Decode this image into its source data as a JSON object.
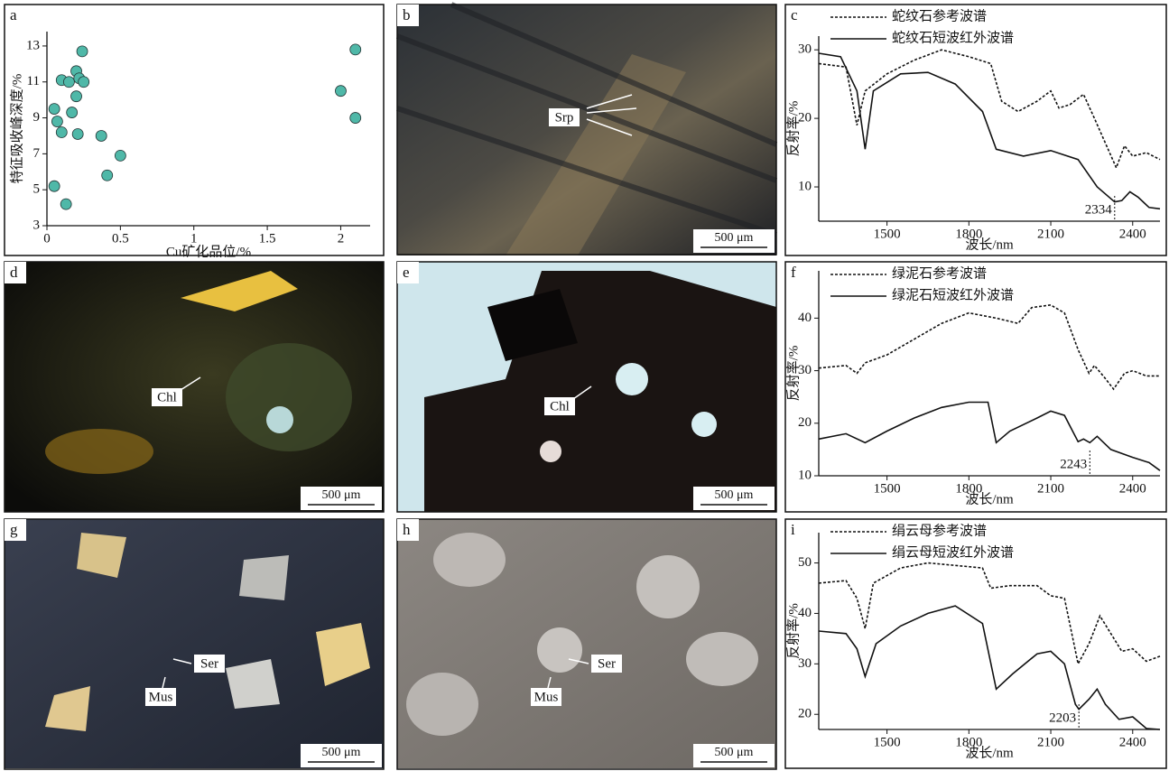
{
  "chart_data": [
    {
      "type": "scatter",
      "label": "a",
      "x_label": "Cu矿化品位/%",
      "y_label": "特征吸收峰深度/%",
      "color": "#4fb8a8",
      "x": [
        0.05,
        0.05,
        0.07,
        0.1,
        0.1,
        0.13,
        0.15,
        0.17,
        0.2,
        0.2,
        0.21,
        0.22,
        0.24,
        0.25,
        0.37,
        0.41,
        0.5,
        2.0,
        2.1,
        2.1
      ],
      "values": [
        9.5,
        5.2,
        8.8,
        11.1,
        8.2,
        4.2,
        11,
        9.3,
        10.2,
        11.6,
        8.1,
        11.2,
        12.7,
        11,
        8,
        5.8,
        6.9,
        10.5,
        12.8,
        9
      ],
      "xlim": [
        0,
        2.2
      ],
      "xticks": [
        0,
        0.5,
        1,
        1.5,
        2
      ],
      "ylim": [
        3,
        13.8
      ],
      "yticks": [
        3,
        5,
        7,
        9,
        11,
        13
      ]
    },
    {
      "type": "line",
      "label": "c",
      "x_label": "波长/nm",
      "y_label": "反射率/%",
      "series": [
        {
          "name": "蛇纹石参考波谱",
          "color": "#111",
          "style": "dashed",
          "x": [
            1250,
            1350,
            1390,
            1420,
            1500,
            1600,
            1700,
            1800,
            1880,
            1920,
            1980,
            2050,
            2100,
            2130,
            2170,
            2220,
            2260,
            2340,
            2370,
            2400,
            2450,
            2500
          ],
          "values": [
            28,
            27.5,
            19,
            24,
            26.5,
            28.5,
            30,
            29,
            28,
            22.5,
            21,
            22.5,
            24,
            21.5,
            22,
            23.5,
            20,
            12.8,
            16,
            14.5,
            15,
            14
          ]
        },
        {
          "name": "蛇纹石短波红外波谱",
          "color": "#111",
          "style": "solid",
          "x": [
            1250,
            1330,
            1390,
            1420,
            1450,
            1550,
            1650,
            1750,
            1850,
            1900,
            2000,
            2100,
            2200,
            2270,
            2334,
            2360,
            2390,
            2420,
            2460,
            2500
          ],
          "values": [
            29.5,
            29,
            24,
            15.5,
            24,
            26.5,
            26.7,
            25,
            21,
            15.5,
            14.5,
            15.3,
            14,
            10,
            7.8,
            8,
            9.3,
            8.5,
            7,
            6.8
          ]
        }
      ],
      "annotations": [
        {
          "text": "2334",
          "x": 2334
        }
      ],
      "xlim": [
        1250,
        2500
      ],
      "xticks": [
        1500,
        1800,
        2100,
        2400
      ],
      "ylim": [
        5,
        32
      ],
      "yticks": [
        10,
        20,
        30
      ]
    },
    {
      "type": "line",
      "label": "f",
      "x_label": "波长/nm",
      "y_label": "反射率/%",
      "series": [
        {
          "name": "绿泥石参考波谱",
          "color": "#111",
          "style": "dashed",
          "x": [
            1250,
            1350,
            1390,
            1420,
            1500,
            1600,
            1700,
            1800,
            1900,
            1980,
            2030,
            2100,
            2150,
            2200,
            2240,
            2260,
            2300,
            2330,
            2370,
            2400,
            2450,
            2500
          ],
          "values": [
            30.5,
            31,
            29.5,
            31.5,
            33,
            36,
            39,
            41,
            40,
            39,
            42,
            42.5,
            41,
            34,
            29.5,
            31,
            28.5,
            26.5,
            29.5,
            30,
            29,
            29
          ]
        },
        {
          "name": "绿泥石短波红外波谱",
          "color": "#111",
          "style": "solid",
          "x": [
            1250,
            1350,
            1420,
            1500,
            1600,
            1700,
            1800,
            1870,
            1900,
            1950,
            2050,
            2100,
            2150,
            2180,
            2200,
            2220,
            2243,
            2270,
            2320,
            2400,
            2460,
            2500
          ],
          "values": [
            17,
            18,
            16.3,
            18.5,
            21,
            23,
            24,
            24,
            16.3,
            18.5,
            21,
            22.3,
            21.5,
            18.5,
            16.5,
            17,
            16.3,
            17.5,
            15,
            13.5,
            12.5,
            11
          ]
        }
      ],
      "annotations": [
        {
          "text": "2243",
          "x": 2243
        }
      ],
      "xlim": [
        1250,
        2500
      ],
      "xticks": [
        1500,
        1800,
        2100,
        2400
      ],
      "ylim": [
        10,
        49
      ],
      "yticks": [
        10,
        20,
        30,
        40
      ]
    },
    {
      "type": "line",
      "label": "i",
      "x_label": "波长/nm",
      "y_label": "反射率/%",
      "series": [
        {
          "name": "绢云母参考波谱",
          "color": "#111",
          "style": "dashed",
          "x": [
            1250,
            1350,
            1390,
            1420,
            1450,
            1550,
            1650,
            1750,
            1850,
            1880,
            1950,
            2050,
            2100,
            2150,
            2200,
            2240,
            2280,
            2320,
            2360,
            2400,
            2450,
            2500
          ],
          "values": [
            46,
            46.5,
            43,
            37,
            46,
            49,
            50,
            49.5,
            49,
            45,
            45.5,
            45.5,
            43.5,
            43,
            30,
            34,
            39.5,
            36,
            32.5,
            33,
            30.5,
            31.5
          ]
        },
        {
          "name": "绢云母短波红外波谱",
          "color": "#111",
          "style": "solid",
          "x": [
            1250,
            1350,
            1390,
            1420,
            1460,
            1550,
            1650,
            1750,
            1850,
            1900,
            1960,
            2050,
            2100,
            2150,
            2190,
            2203,
            2240,
            2270,
            2300,
            2350,
            2400,
            2450,
            2500
          ],
          "values": [
            36.5,
            36,
            33,
            27.5,
            34,
            37.5,
            40,
            41.5,
            38,
            25,
            28,
            32,
            32.5,
            30,
            22,
            21,
            23,
            25,
            22,
            19,
            19.5,
            17.2,
            17
          ]
        }
      ],
      "annotations": [
        {
          "text": "2203",
          "x": 2203
        }
      ],
      "xlim": [
        1250,
        2500
      ],
      "xticks": [
        1500,
        1800,
        2100,
        2400
      ],
      "ylim": [
        17,
        56
      ],
      "yticks": [
        20,
        30,
        40,
        50
      ]
    }
  ],
  "images": [
    {
      "label": "b",
      "annotations": [
        "Srp"
      ],
      "scale_bar": "500 μm"
    },
    {
      "label": "d",
      "annotations": [
        "Chl"
      ],
      "scale_bar": "500 μm"
    },
    {
      "label": "e",
      "annotations": [
        "Chl"
      ],
      "scale_bar": "500 μm"
    },
    {
      "label": "g",
      "annotations": [
        "Ser",
        "Mus"
      ],
      "scale_bar": "500 μm"
    },
    {
      "label": "h",
      "annotations": [
        "Ser",
        "Mus"
      ],
      "scale_bar": "500 μm"
    }
  ]
}
